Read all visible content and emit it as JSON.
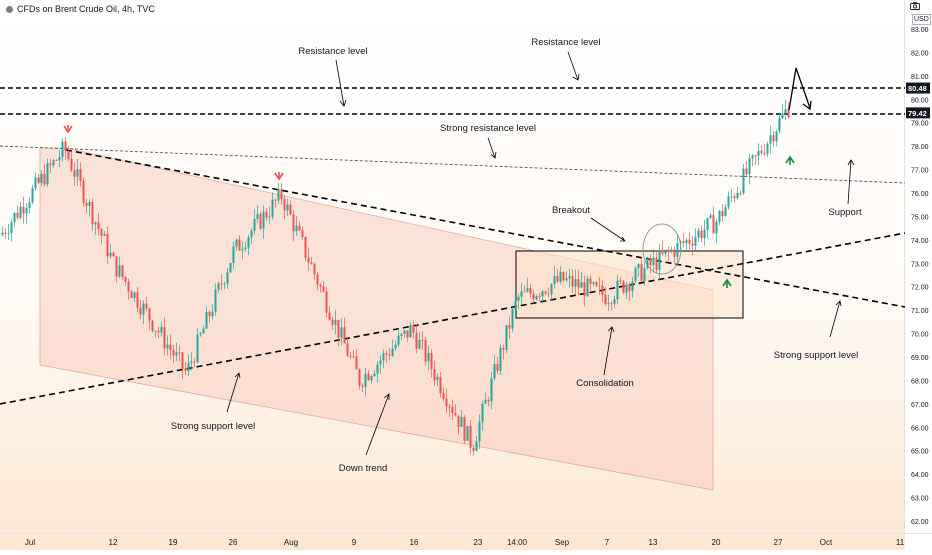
{
  "header": {
    "symbol_line": "CFDs on Brent Crude Oil, 4h, TVC",
    "currency_badge": "USD",
    "camera_icon": "camera-icon"
  },
  "chart_data": {
    "type": "candlestick",
    "title": "CFDs on Brent Crude Oil, 4h, TVC",
    "currency": "USD",
    "x_tick_labels": [
      "Jul",
      "12",
      "19",
      "26",
      "Aug",
      "9",
      "16",
      "23",
      "14:00",
      "Sep",
      "7",
      "13",
      "20",
      "27",
      "Oct",
      "11"
    ],
    "y_tick_labels": [
      83.0,
      82.0,
      81.0,
      80.0,
      79.0,
      78.0,
      77.0,
      76.0,
      75.0,
      74.0,
      73.0,
      72.0,
      71.0,
      70.0,
      69.0,
      68.0,
      67.0,
      66.0,
      65.0,
      64.0,
      63.0,
      62.0
    ],
    "ylim": [
      61.7,
      83.6
    ],
    "price_tags": [
      {
        "value": "80.48",
        "style": "dark"
      },
      {
        "value": "79.42",
        "style": "dark"
      }
    ],
    "horizontal_levels": [
      80.48,
      79.42
    ],
    "colors": {
      "up": "#26a69a",
      "down": "#ef5350",
      "zone_fill": "#fad9c8",
      "level_line": "#000000"
    },
    "approx_path": [
      {
        "label": "Jul",
        "close": 74.2
      },
      {
        "label": "early Jul",
        "close": 77.9
      },
      {
        "label": "12",
        "close": 73.0
      },
      {
        "label": "19",
        "close": 68.3
      },
      {
        "label": "26",
        "close": 73.5
      },
      {
        "label": "Aug",
        "close": 75.9
      },
      {
        "label": "9",
        "close": 68.0
      },
      {
        "label": "16",
        "close": 70.2
      },
      {
        "label": "23",
        "close": 65.2
      },
      {
        "label": "14:00",
        "close": 71.5
      },
      {
        "label": "Sep",
        "close": 72.3
      },
      {
        "label": "7",
        "close": 71.6
      },
      {
        "label": "13",
        "close": 73.0
      },
      {
        "label": "20",
        "close": 74.8
      },
      {
        "label": "27",
        "close": 79.8
      }
    ],
    "annotations": [
      "Resistance level",
      "Resistance level",
      "Strong resistance level",
      "Breakout",
      "Support",
      "Strong support level",
      "Consolidation",
      "Strong support level",
      "Down trend"
    ]
  }
}
